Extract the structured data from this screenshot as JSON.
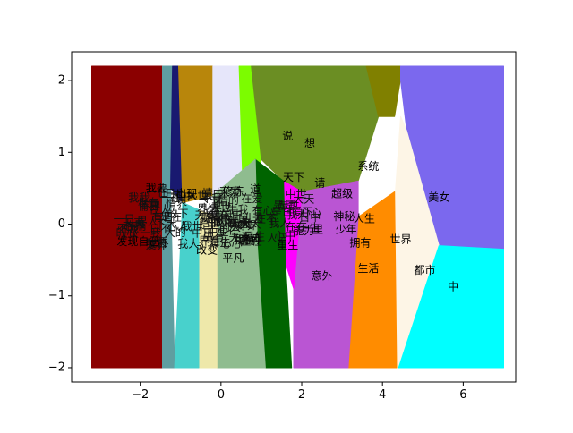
{
  "chart_data": {
    "type": "scatter",
    "title": "",
    "xlabel": "",
    "ylabel": "",
    "xlim": [
      -3.7,
      7.3
    ],
    "ylim": [
      -2.2,
      2.4
    ],
    "grid": false,
    "legend": "none",
    "x_ticks": [
      {
        "value": -2,
        "label": "−2"
      },
      {
        "value": 0,
        "label": "0"
      },
      {
        "value": 2,
        "label": "2"
      },
      {
        "value": 4,
        "label": "4"
      },
      {
        "value": 6,
        "label": "6"
      }
    ],
    "y_ticks": [
      {
        "value": -2,
        "label": "−2"
      },
      {
        "value": -1,
        "label": "−1"
      },
      {
        "value": 0,
        "label": "0"
      },
      {
        "value": 1,
        "label": "1"
      },
      {
        "value": 2,
        "label": "2"
      }
    ],
    "regions": [
      {
        "color": "#8b0000",
        "points": [
          [
            -3.2,
            2.2
          ],
          [
            -1.45,
            2.2
          ],
          [
            -1.45,
            -2.0
          ],
          [
            -3.2,
            -2.0
          ]
        ]
      },
      {
        "color": "#5f9ea0",
        "points": [
          [
            -1.45,
            2.2
          ],
          [
            -1.2,
            2.2
          ],
          [
            -1.25,
            0.5
          ],
          [
            -1.15,
            -2.0
          ],
          [
            -1.45,
            -2.0
          ]
        ]
      },
      {
        "color": "#191970",
        "points": [
          [
            -1.2,
            2.2
          ],
          [
            -1.05,
            2.2
          ],
          [
            -0.95,
            0.3
          ],
          [
            -1.25,
            0.5
          ]
        ]
      },
      {
        "color": "#b8860b",
        "points": [
          [
            -1.05,
            2.2
          ],
          [
            -0.2,
            2.2
          ],
          [
            -0.2,
            0.4
          ],
          [
            -0.95,
            0.3
          ]
        ]
      },
      {
        "color": "#e6e6fa",
        "points": [
          [
            -0.2,
            2.2
          ],
          [
            0.45,
            2.2
          ],
          [
            0.55,
            0.4
          ],
          [
            -0.2,
            0.4
          ]
        ]
      },
      {
        "color": "#7cfc00",
        "points": [
          [
            0.45,
            2.2
          ],
          [
            0.75,
            2.2
          ],
          [
            1.0,
            0.9
          ],
          [
            0.6,
            0.3
          ],
          [
            0.55,
            0.4
          ]
        ]
      },
      {
        "color": "#6b8e23",
        "points": [
          [
            0.75,
            2.2
          ],
          [
            4.3,
            2.2
          ],
          [
            3.9,
            1.5
          ],
          [
            3.4,
            0.6
          ],
          [
            2.0,
            0.45
          ],
          [
            1.55,
            0.6
          ],
          [
            1.0,
            0.9
          ]
        ]
      },
      {
        "color": "#808000",
        "points": [
          [
            3.6,
            2.2
          ],
          [
            4.5,
            2.2
          ],
          [
            4.3,
            1.5
          ],
          [
            3.9,
            1.5
          ]
        ]
      },
      {
        "color": "#7b68ee",
        "points": [
          [
            4.45,
            2.2
          ],
          [
            7.0,
            2.2
          ],
          [
            7.0,
            -0.35
          ],
          [
            5.4,
            -0.3
          ],
          [
            4.6,
            1.3
          ],
          [
            4.45,
            2.0
          ]
        ]
      },
      {
        "color": "#fdf5e6",
        "points": [
          [
            4.45,
            1.5
          ],
          [
            4.6,
            1.3
          ],
          [
            5.4,
            -0.3
          ],
          [
            4.4,
            -2.0
          ],
          [
            4.3,
            -2.0
          ],
          [
            4.3,
            0.3
          ]
        ]
      },
      {
        "color": "#00ffff",
        "points": [
          [
            5.4,
            -0.3
          ],
          [
            7.0,
            -0.35
          ],
          [
            7.0,
            -2.0
          ],
          [
            4.4,
            -2.0
          ]
        ]
      },
      {
        "color": "#ff8c00",
        "points": [
          [
            3.4,
            0.1
          ],
          [
            4.3,
            0.45
          ],
          [
            4.35,
            -2.0
          ],
          [
            3.15,
            -2.0
          ]
        ]
      },
      {
        "color": "#ba55d3",
        "points": [
          [
            1.8,
            0.0
          ],
          [
            2.0,
            0.45
          ],
          [
            3.4,
            0.6
          ],
          [
            3.4,
            0.1
          ],
          [
            3.15,
            -2.0
          ],
          [
            1.8,
            -2.0
          ]
        ]
      },
      {
        "color": "#ff00ff",
        "points": [
          [
            1.55,
            0.6
          ],
          [
            2.0,
            0.45
          ],
          [
            1.8,
            -0.9
          ],
          [
            1.6,
            -0.55
          ]
        ]
      },
      {
        "color": "#006400",
        "points": [
          [
            0.85,
            0.9
          ],
          [
            1.55,
            0.6
          ],
          [
            1.6,
            -0.55
          ],
          [
            1.75,
            -2.0
          ],
          [
            1.1,
            -2.0
          ],
          [
            0.9,
            -0.3
          ]
        ]
      },
      {
        "color": "#8fbc8f",
        "points": [
          [
            -0.2,
            0.4
          ],
          [
            0.85,
            0.9
          ],
          [
            0.9,
            -0.3
          ],
          [
            1.1,
            -2.0
          ],
          [
            -0.1,
            -2.0
          ],
          [
            -0.1,
            0.1
          ]
        ]
      },
      {
        "color": "#eee8aa",
        "points": [
          [
            -0.55,
            0.2
          ],
          [
            -0.1,
            0.1
          ],
          [
            -0.1,
            -2.0
          ],
          [
            -0.55,
            -2.0
          ]
        ]
      },
      {
        "color": "#48d1cc",
        "points": [
          [
            -0.95,
            0.3
          ],
          [
            -0.55,
            0.2
          ],
          [
            -0.55,
            -2.0
          ],
          [
            -1.15,
            -2.0
          ]
        ]
      }
    ],
    "labels": [
      {
        "text": "说",
        "x": 1.65,
        "y": 1.22
      },
      {
        "text": "想",
        "x": 2.2,
        "y": 1.12
      },
      {
        "text": "系统",
        "x": 3.65,
        "y": 0.8
      },
      {
        "text": "天下",
        "x": 1.8,
        "y": 0.65
      },
      {
        "text": "请",
        "x": 2.45,
        "y": 0.57
      },
      {
        "text": "我要",
        "x": -1.6,
        "y": 0.5
      },
      {
        "text": "道",
        "x": 0.85,
        "y": 0.48
      },
      {
        "text": "修炼",
        "x": 0.3,
        "y": 0.45
      },
      {
        "text": "出现",
        "x": -0.85,
        "y": 0.42
      },
      {
        "text": "超级",
        "x": 3.0,
        "y": 0.42
      },
      {
        "text": "美女",
        "x": 5.4,
        "y": 0.37
      },
      {
        "text": "神秘",
        "x": 3.05,
        "y": 0.1
      },
      {
        "text": "人生",
        "x": 3.55,
        "y": 0.07
      },
      {
        "text": "能力",
        "x": 2.05,
        "y": -0.1
      },
      {
        "text": "里",
        "x": 2.4,
        "y": -0.08
      },
      {
        "text": "少年",
        "x": 3.1,
        "y": -0.08
      },
      {
        "text": "发现自己",
        "x": -2.05,
        "y": -0.25
      },
      {
        "text": "重生",
        "x": 1.65,
        "y": -0.3
      },
      {
        "text": "空间",
        "x": 0.7,
        "y": -0.22
      },
      {
        "text": "世界",
        "x": 4.45,
        "y": -0.22
      },
      {
        "text": "拥有",
        "x": 3.45,
        "y": -0.27
      },
      {
        "text": "改变",
        "x": -0.35,
        "y": -0.37
      },
      {
        "text": "平凡",
        "x": 0.3,
        "y": -0.48
      },
      {
        "text": "生活",
        "x": 3.65,
        "y": -0.62
      },
      {
        "text": "都市",
        "x": 5.05,
        "y": -0.65
      },
      {
        "text": "意外",
        "x": 2.5,
        "y": -0.73
      },
      {
        "text": "中",
        "x": 5.75,
        "y": -0.88
      }
    ]
  }
}
